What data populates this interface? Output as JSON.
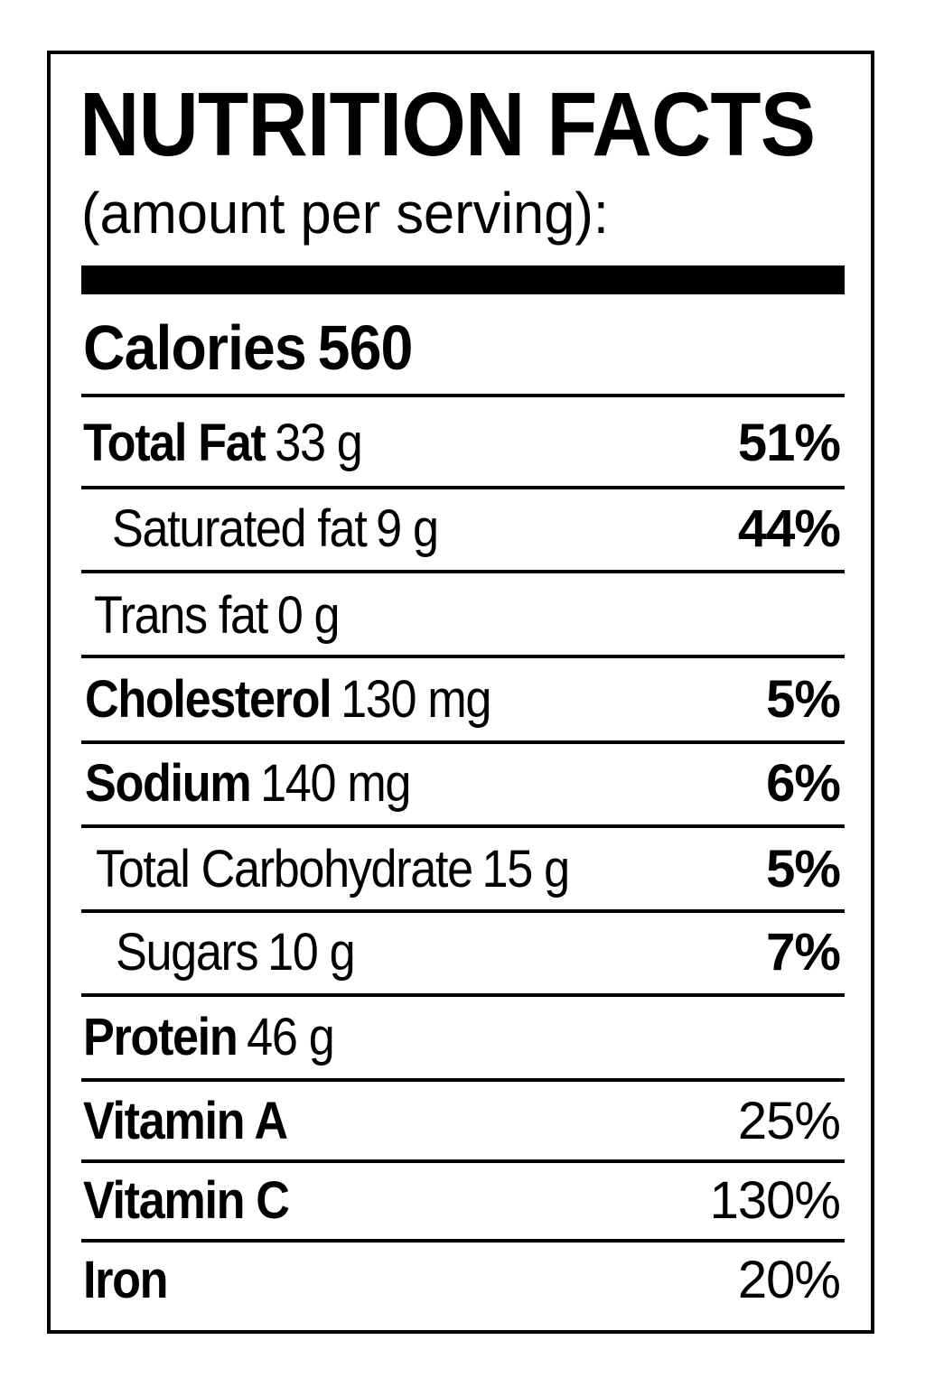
{
  "label": {
    "title": "NUTRITION FACTS",
    "subtitle": "(amount per serving):",
    "calories_label": "Calories",
    "calories_value": "560"
  },
  "nutrients": [
    {
      "name": "Total Fat",
      "amount": "33 g",
      "dv": "51%"
    },
    {
      "name": "Saturated fat",
      "amount": "9 g",
      "dv": "44%"
    },
    {
      "name": "Trans fat",
      "amount": "0 g",
      "dv": ""
    },
    {
      "name": "Cholesterol",
      "amount": "130 mg",
      "dv": "5%"
    },
    {
      "name": "Sodium",
      "amount": "140 mg",
      "dv": "6%"
    },
    {
      "name": "Total Carbohydrate",
      "amount": "15 g",
      "dv": "5%"
    },
    {
      "name": "Sugars",
      "amount": "10 g",
      "dv": "7%"
    },
    {
      "name": "Protein",
      "amount": "46 g",
      "dv": ""
    },
    {
      "name": "Vitamin A",
      "amount": "",
      "dv": "25%"
    },
    {
      "name": "Vitamin C",
      "amount": "",
      "dv": "130%"
    },
    {
      "name": "Iron",
      "amount": "",
      "dv": "20%"
    }
  ]
}
